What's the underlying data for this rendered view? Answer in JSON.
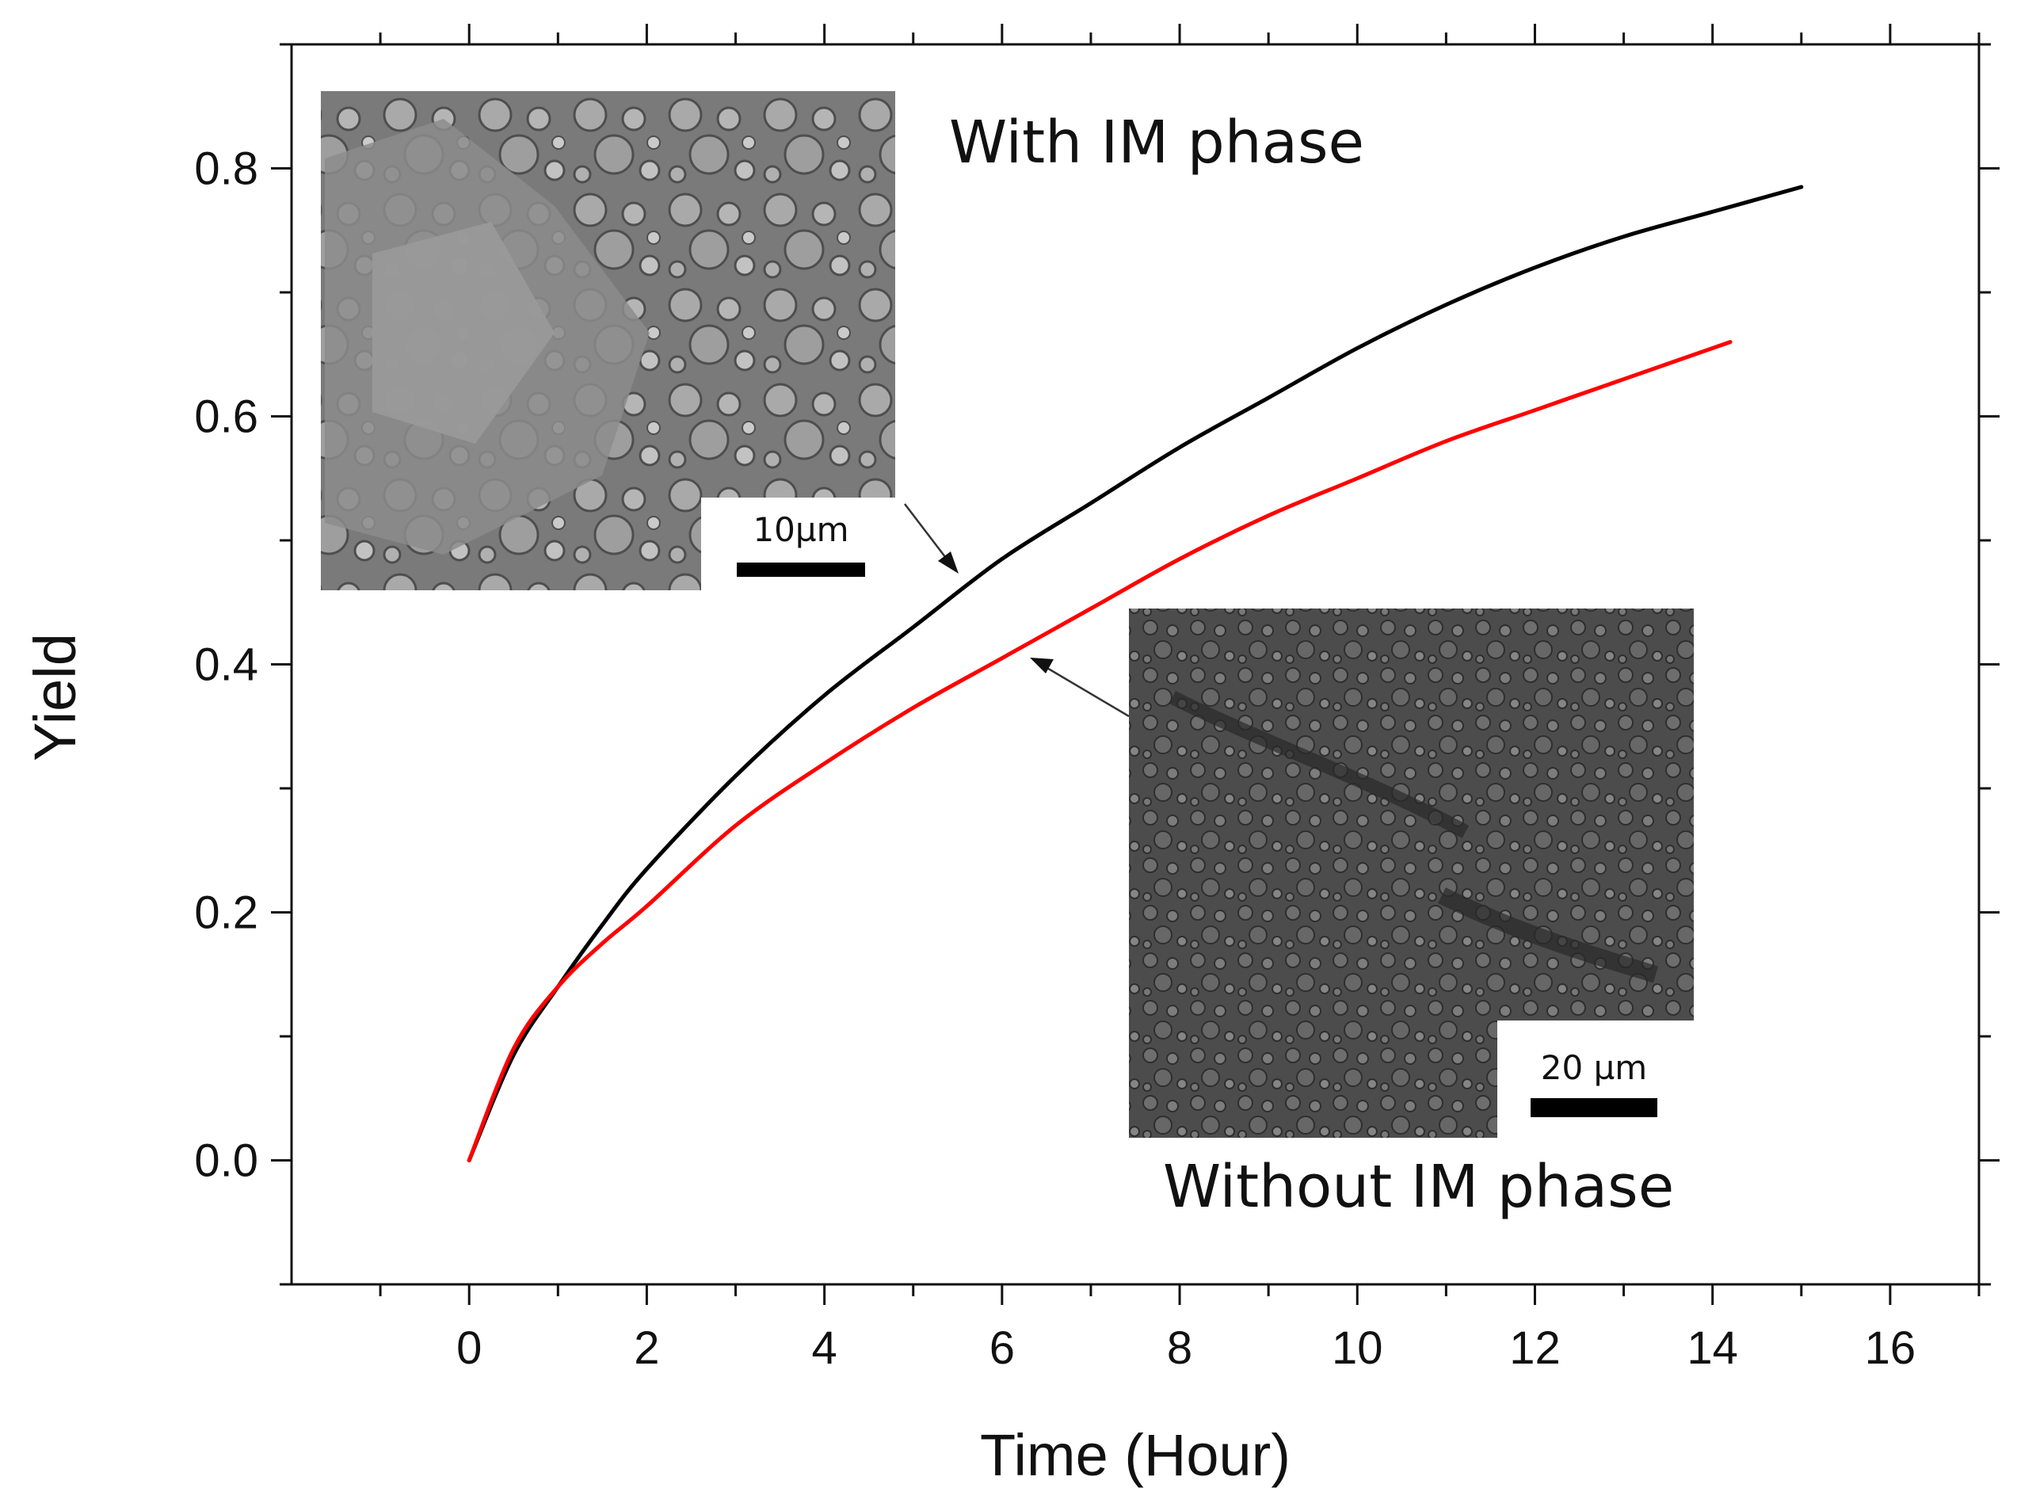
{
  "chart_data": {
    "type": "line",
    "title": "",
    "xlabel": "Time (Hour)",
    "ylabel": "Yield",
    "xlim": [
      -2,
      17
    ],
    "ylim": [
      -0.1,
      0.9
    ],
    "x_ticks": [
      0,
      2,
      4,
      6,
      8,
      10,
      12,
      14,
      16
    ],
    "x_tick_labels": [
      "0",
      "2",
      "4",
      "6",
      "8",
      "10",
      "12",
      "14",
      "16"
    ],
    "y_ticks": [
      0.0,
      0.2,
      0.4,
      0.6,
      0.8
    ],
    "y_tick_labels": [
      "0.0",
      "0.2",
      "0.4",
      "0.6",
      "0.8"
    ],
    "grid": false,
    "legend": "none",
    "series": [
      {
        "color": "#000000",
        "x": [
          0,
          0.5,
          1,
          1.5,
          2,
          3,
          4,
          5,
          6,
          7,
          8,
          9,
          10,
          11,
          12,
          13,
          14,
          15
        ],
        "y": [
          0.0,
          0.085,
          0.14,
          0.19,
          0.235,
          0.31,
          0.375,
          0.43,
          0.485,
          0.53,
          0.575,
          0.615,
          0.655,
          0.69,
          0.72,
          0.745,
          0.765,
          0.785
        ]
      },
      {
        "color": "#ff0000",
        "x": [
          0,
          0.5,
          1,
          1.5,
          2,
          3,
          4,
          5,
          6,
          7,
          8,
          9,
          10,
          11,
          12,
          13,
          14.2
        ],
        "y": [
          0.0,
          0.09,
          0.14,
          0.175,
          0.205,
          0.27,
          0.32,
          0.365,
          0.405,
          0.445,
          0.485,
          0.52,
          0.55,
          0.58,
          0.605,
          0.63,
          0.66
        ]
      }
    ],
    "annotations": [
      {
        "text": "With IM phase",
        "scale_bar": "10µm"
      },
      {
        "text": "Without IM phase",
        "scale_bar": "20 µm"
      }
    ]
  }
}
